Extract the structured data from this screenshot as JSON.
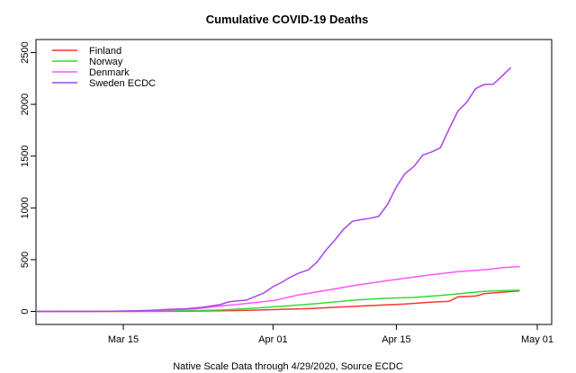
{
  "chart_data": {
    "type": "line",
    "title": "Cumulative COVID-19 Deaths",
    "xlabel": "Native Scale Data through 4/29/2020, Source ECDC",
    "ylabel": "",
    "x_start_date": "2020-03-05",
    "x_end_date": "2020-05-01",
    "x_ticks": [
      {
        "date": "2020-03-15",
        "label": "Mar 15"
      },
      {
        "date": "2020-04-01",
        "label": "Apr 01"
      },
      {
        "date": "2020-04-15",
        "label": "Apr 15"
      },
      {
        "date": "2020-05-01",
        "label": "May 01"
      }
    ],
    "y_ticks": [
      0,
      500,
      1000,
      1500,
      2000,
      2500
    ],
    "ylim": [
      0,
      2500
    ],
    "legend_position": "top-left",
    "grid": false,
    "series": [
      {
        "name": "Finland",
        "color": "#ff3333",
        "points": [
          [
            "2020-03-05",
            0
          ],
          [
            "2020-03-15",
            0
          ],
          [
            "2020-03-21",
            1
          ],
          [
            "2020-03-25",
            5
          ],
          [
            "2020-03-28",
            9
          ],
          [
            "2020-04-01",
            17
          ],
          [
            "2020-04-05",
            27
          ],
          [
            "2020-04-08",
            40
          ],
          [
            "2020-04-12",
            56
          ],
          [
            "2020-04-16",
            72
          ],
          [
            "2020-04-19",
            90
          ],
          [
            "2020-04-21",
            98
          ],
          [
            "2020-04-22",
            141
          ],
          [
            "2020-04-24",
            149
          ],
          [
            "2020-04-25",
            172
          ],
          [
            "2020-04-27",
            186
          ],
          [
            "2020-04-29",
            199
          ]
        ]
      },
      {
        "name": "Norway",
        "color": "#33dd33",
        "points": [
          [
            "2020-03-05",
            0
          ],
          [
            "2020-03-12",
            1
          ],
          [
            "2020-03-18",
            4
          ],
          [
            "2020-03-22",
            7
          ],
          [
            "2020-03-26",
            14
          ],
          [
            "2020-03-30",
            32
          ],
          [
            "2020-04-02",
            50
          ],
          [
            "2020-04-06",
            76
          ],
          [
            "2020-04-10",
            108
          ],
          [
            "2020-04-14",
            128
          ],
          [
            "2020-04-17",
            136
          ],
          [
            "2020-04-20",
            154
          ],
          [
            "2020-04-23",
            178
          ],
          [
            "2020-04-25",
            194
          ],
          [
            "2020-04-27",
            201
          ],
          [
            "2020-04-29",
            205
          ]
        ]
      },
      {
        "name": "Denmark",
        "color": "#ff55ff",
        "points": [
          [
            "2020-03-05",
            0
          ],
          [
            "2020-03-12",
            1
          ],
          [
            "2020-03-16",
            4
          ],
          [
            "2020-03-20",
            13
          ],
          [
            "2020-03-23",
            24
          ],
          [
            "2020-03-26",
            52
          ],
          [
            "2020-03-29",
            77
          ],
          [
            "2020-04-01",
            104
          ],
          [
            "2020-04-04",
            161
          ],
          [
            "2020-04-07",
            203
          ],
          [
            "2020-04-10",
            247
          ],
          [
            "2020-04-13",
            285
          ],
          [
            "2020-04-16",
            321
          ],
          [
            "2020-04-19",
            355
          ],
          [
            "2020-04-22",
            384
          ],
          [
            "2020-04-25",
            403
          ],
          [
            "2020-04-27",
            422
          ],
          [
            "2020-04-29",
            434
          ]
        ]
      },
      {
        "name": "Sweden ECDC",
        "color": "#aa44ee",
        "points": [
          [
            "2020-03-05",
            0
          ],
          [
            "2020-03-12",
            1
          ],
          [
            "2020-03-15",
            3
          ],
          [
            "2020-03-18",
            10
          ],
          [
            "2020-03-20",
            20
          ],
          [
            "2020-03-22",
            25
          ],
          [
            "2020-03-24",
            40
          ],
          [
            "2020-03-26",
            66
          ],
          [
            "2020-03-27",
            92
          ],
          [
            "2020-03-28",
            102
          ],
          [
            "2020-03-29",
            110
          ],
          [
            "2020-03-31",
            180
          ],
          [
            "2020-04-01",
            239
          ],
          [
            "2020-04-02",
            282
          ],
          [
            "2020-04-03",
            333
          ],
          [
            "2020-04-04",
            373
          ],
          [
            "2020-04-05",
            401
          ],
          [
            "2020-04-06",
            477
          ],
          [
            "2020-04-07",
            591
          ],
          [
            "2020-04-08",
            687
          ],
          [
            "2020-04-09",
            793
          ],
          [
            "2020-04-10",
            870
          ],
          [
            "2020-04-11",
            887
          ],
          [
            "2020-04-12",
            899
          ],
          [
            "2020-04-13",
            919
          ],
          [
            "2020-04-14",
            1033
          ],
          [
            "2020-04-15",
            1203
          ],
          [
            "2020-04-16",
            1333
          ],
          [
            "2020-04-17",
            1400
          ],
          [
            "2020-04-18",
            1511
          ],
          [
            "2020-04-19",
            1540
          ],
          [
            "2020-04-20",
            1580
          ],
          [
            "2020-04-21",
            1765
          ],
          [
            "2020-04-22",
            1937
          ],
          [
            "2020-04-23",
            2021
          ],
          [
            "2020-04-24",
            2152
          ],
          [
            "2020-04-25",
            2192
          ],
          [
            "2020-04-26",
            2194
          ],
          [
            "2020-04-27",
            2274
          ],
          [
            "2020-04-28",
            2355
          ]
        ]
      }
    ]
  }
}
